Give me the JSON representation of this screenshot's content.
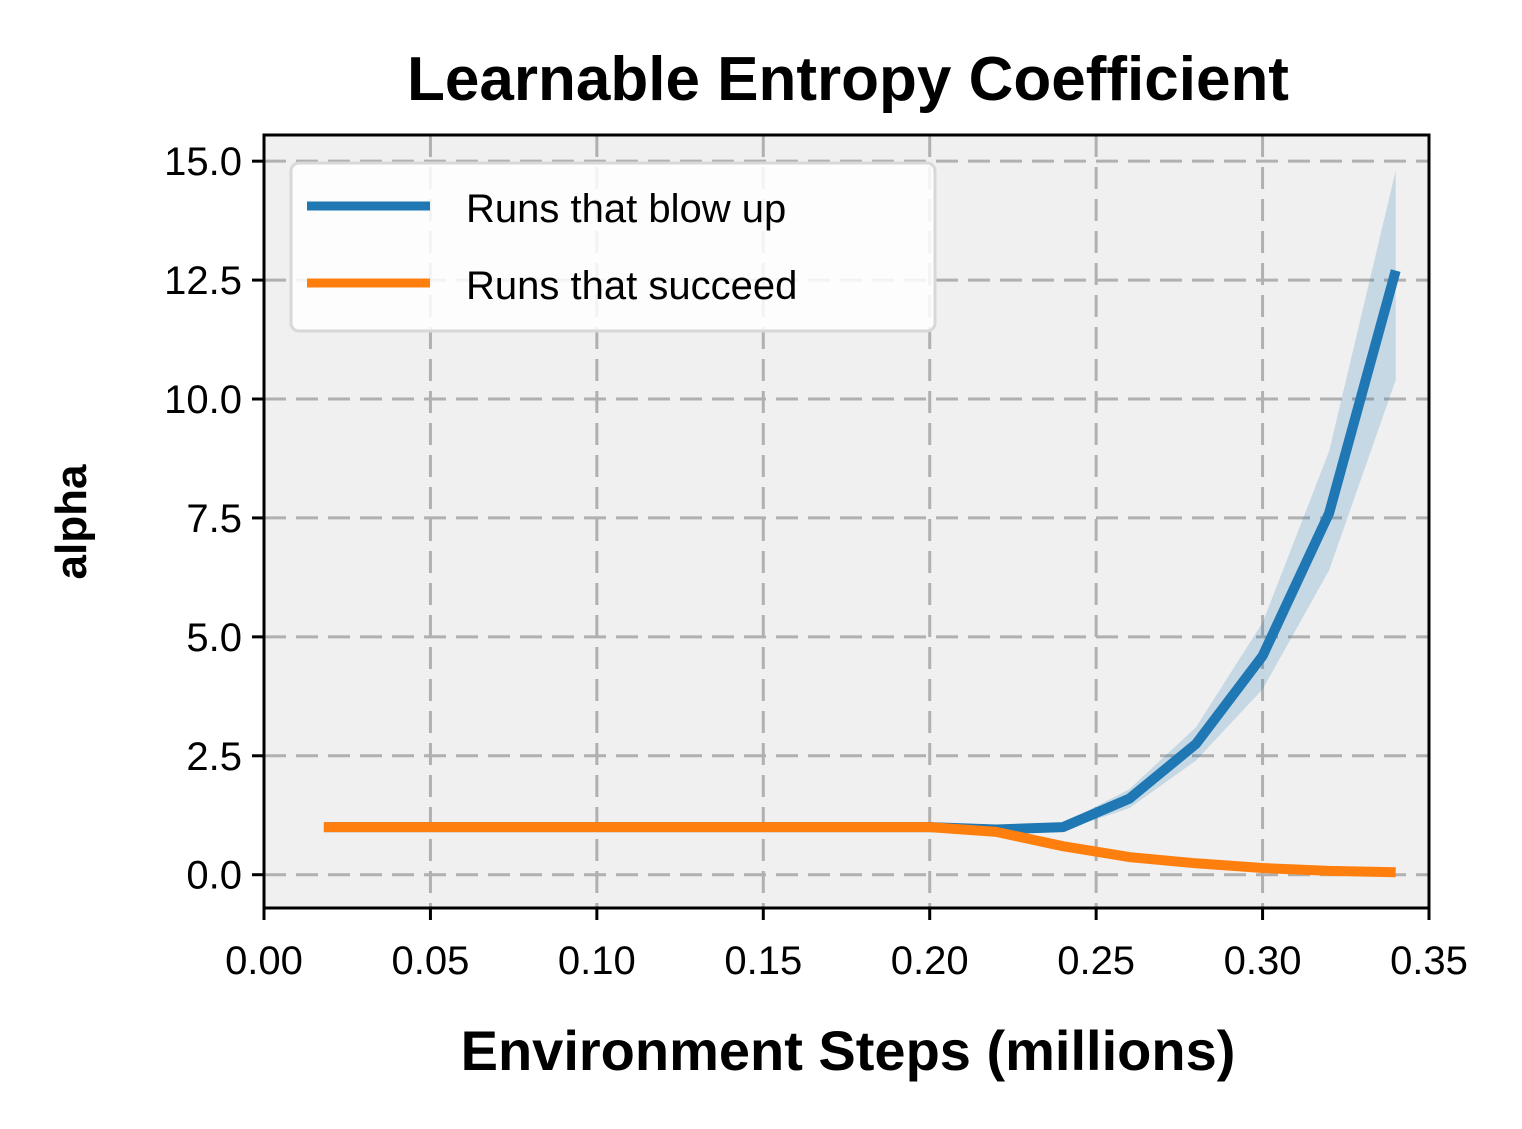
{
  "chart_data": {
    "type": "line",
    "title": "Learnable Entropy Coefficient",
    "xlabel": "Environment Steps (millions)",
    "ylabel": "alpha",
    "xlim": [
      0.0,
      0.35
    ],
    "ylim": [
      -0.7,
      15.55
    ],
    "xticks": [
      "0.00",
      "0.05",
      "0.10",
      "0.15",
      "0.20",
      "0.25",
      "0.30",
      "0.35"
    ],
    "yticks": [
      "0.0",
      "2.5",
      "5.0",
      "7.5",
      "10.0",
      "12.5",
      "15.0"
    ],
    "grid": true,
    "legend_position": "top-left",
    "x": [
      0.018,
      0.04,
      0.06,
      0.08,
      0.1,
      0.12,
      0.14,
      0.16,
      0.18,
      0.2,
      0.22,
      0.24,
      0.26,
      0.28,
      0.3,
      0.32,
      0.34
    ],
    "series": [
      {
        "name": "Runs that blow up",
        "color": "#1f77b4",
        "values": [
          1.0,
          1.0,
          1.0,
          1.0,
          1.0,
          1.0,
          1.0,
          1.0,
          1.0,
          1.0,
          0.95,
          1.0,
          1.6,
          2.75,
          4.6,
          7.6,
          12.7
        ],
        "band_lower": [
          1.0,
          1.0,
          1.0,
          1.0,
          1.0,
          1.0,
          1.0,
          1.0,
          1.0,
          1.0,
          0.9,
          0.93,
          1.4,
          2.4,
          3.9,
          6.4,
          10.4
        ],
        "band_upper": [
          1.0,
          1.0,
          1.0,
          1.0,
          1.0,
          1.0,
          1.0,
          1.0,
          1.0,
          1.0,
          1.0,
          1.07,
          1.8,
          3.1,
          5.3,
          8.9,
          14.8
        ]
      },
      {
        "name": "Runs that succeed",
        "color": "#ff7f0e",
        "values": [
          1.0,
          1.0,
          1.0,
          1.0,
          1.0,
          1.0,
          1.0,
          1.0,
          1.0,
          1.0,
          0.9,
          0.6,
          0.37,
          0.24,
          0.14,
          0.08,
          0.05
        ]
      }
    ]
  }
}
